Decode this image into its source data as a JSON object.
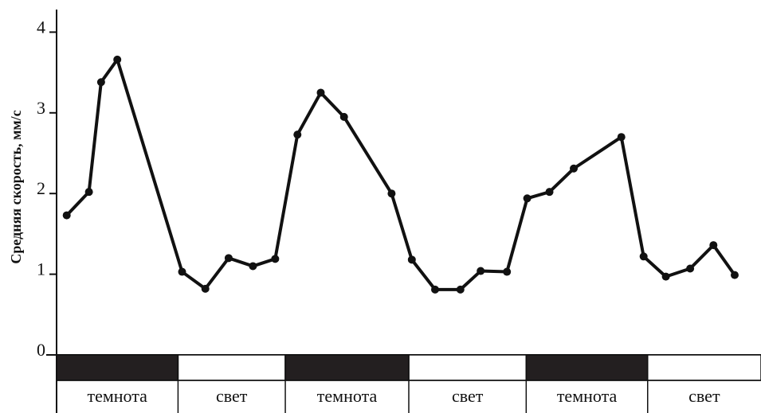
{
  "chart_data": {
    "type": "line",
    "y_label": "Средняя скорость, мм/с",
    "x": [
      1.0,
      3.2,
      4.4,
      6.0,
      12.4,
      14.7,
      17.0,
      19.4,
      21.6,
      23.8,
      26.1,
      28.4,
      33.1,
      35.1,
      37.4,
      39.9,
      41.9,
      44.5,
      46.5,
      48.7,
      51.1,
      55.8,
      58.0,
      60.2,
      62.6,
      64.9,
      67.0
    ],
    "values": [
      1.73,
      2.02,
      3.38,
      3.66,
      1.03,
      0.82,
      1.2,
      1.1,
      1.19,
      2.73,
      3.25,
      2.95,
      2.0,
      1.18,
      0.81,
      0.81,
      1.04,
      1.03,
      1.94,
      2.02,
      2.31,
      2.7,
      1.22,
      0.97,
      1.07,
      1.36,
      0.99
    ],
    "color": "#111111",
    "xlim": [
      0,
      69.6
    ],
    "ylim": [
      0,
      4.28
    ],
    "yticks": [
      0,
      1,
      2,
      3,
      4
    ],
    "periods": [
      {
        "label": "темнота",
        "start": 0,
        "end": 12.0,
        "color": "#231f20"
      },
      {
        "label": "свет",
        "start": 12.0,
        "end": 22.6,
        "color": "#ffffff"
      },
      {
        "label": "темнота",
        "start": 22.6,
        "end": 34.8,
        "color": "#231f20"
      },
      {
        "label": "свет",
        "start": 34.8,
        "end": 46.4,
        "color": "#ffffff"
      },
      {
        "label": "темнота",
        "start": 46.4,
        "end": 58.4,
        "color": "#231f20"
      },
      {
        "label": "свет",
        "start": 58.4,
        "end": 69.6,
        "color": "#ffffff"
      }
    ]
  }
}
